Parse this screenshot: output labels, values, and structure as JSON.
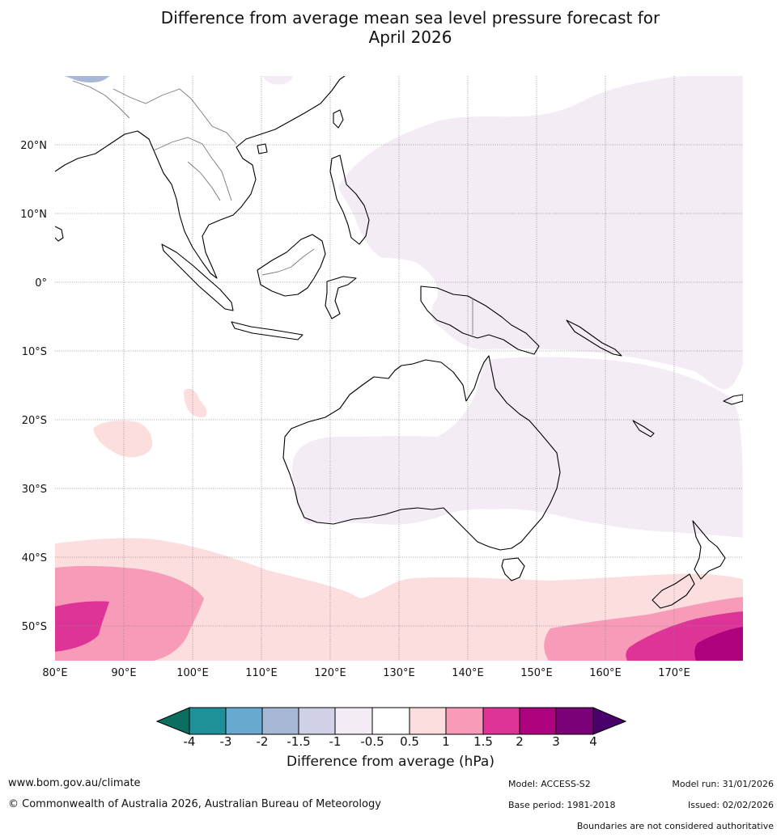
{
  "title_line1": "Difference from average mean sea level pressure forecast for",
  "title_line2": "April 2026",
  "lat_labels": [
    "20°N",
    "10°N",
    "0°",
    "10°S",
    "20°S",
    "30°S",
    "40°S",
    "50°S"
  ],
  "lon_labels": [
    "80°E",
    "90°E",
    "100°E",
    "110°E",
    "120°E",
    "130°E",
    "140°E",
    "150°E",
    "160°E",
    "170°E"
  ],
  "colorbar": {
    "title": "Difference from average (hPa)",
    "ticks": [
      "-4",
      "-3",
      "-2",
      "-1.5",
      "-1",
      "-0.5",
      "0.5",
      "1",
      "1.5",
      "2",
      "3",
      "4"
    ],
    "colors": {
      "below_-4": "#0b6e5e",
      "-4_-3": "#1e9099",
      "-3_-2": "#67a9cf",
      "-2_-1.5": "#a6b8d6",
      "-1.5_-1": "#d0d1e6",
      "-1_-0.5": "#f3ecf5",
      "-0.5_0.5": "#ffffff",
      "0.5_1": "#fddede",
      "1_1.5": "#f89bb8",
      "1.5_2": "#de3497",
      "2_3": "#ae017e",
      "3_4": "#7a0177",
      "above_4": "#49006a"
    }
  },
  "footer": {
    "url": "www.bom.gov.au/climate",
    "copyright": "© Commonwealth of Australia 2026, Australian Bureau of Meteorology",
    "model": "Model: ACCESS-S2",
    "model_run": "Model run: 31/01/2026",
    "base_period": "Base period: 1981-2018",
    "issued": "Issued: 02/02/2026",
    "disclaimer": "Boundaries are not considered authoritative"
  }
}
